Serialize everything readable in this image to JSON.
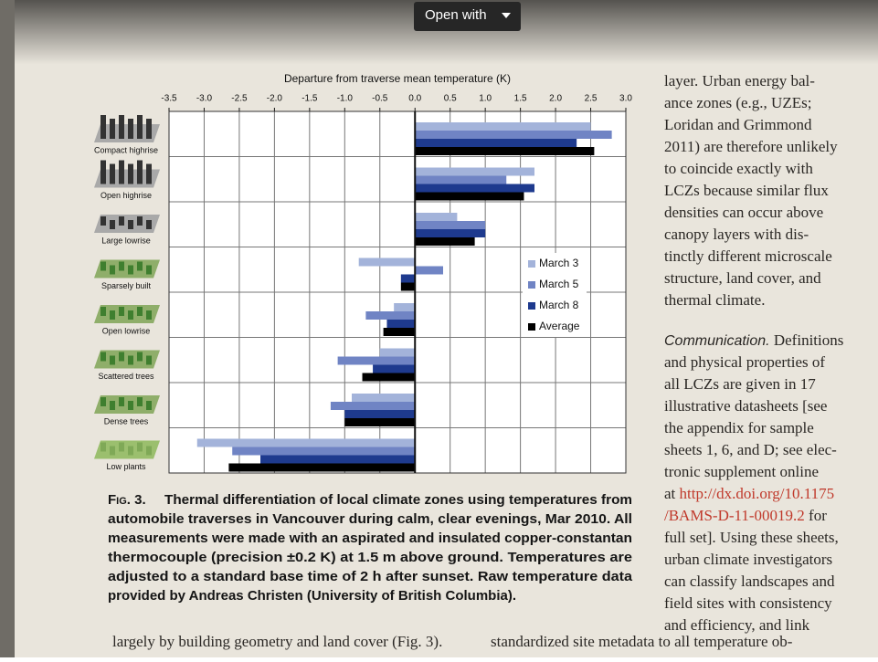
{
  "toolbar": {
    "open_with": "Open with"
  },
  "chart_data": {
    "type": "hbar",
    "title": "Departure from traverse mean temperature (K)",
    "categories": [
      "Compact highrise",
      "Open highrise",
      "Large lowrise",
      "Sparsely built",
      "Open lowrise",
      "Scattered trees",
      "Dense trees",
      "Low plants"
    ],
    "series": [
      {
        "name": "March 3",
        "color": "#a3b3da",
        "values": [
          2.5,
          1.7,
          0.6,
          -0.8,
          -0.3,
          -0.5,
          -0.9,
          -3.1
        ]
      },
      {
        "name": "March 5",
        "color": "#7084c4",
        "values": [
          2.8,
          1.3,
          1.0,
          0.4,
          -0.7,
          -1.1,
          -1.2,
          -2.6
        ]
      },
      {
        "name": "March 8",
        "color": "#1e3a8e",
        "values": [
          2.3,
          1.7,
          1.0,
          -0.2,
          -0.4,
          -0.6,
          -1.0,
          -2.2
        ]
      },
      {
        "name": "Average",
        "color": "#000000",
        "values": [
          2.55,
          1.55,
          0.85,
          -0.2,
          -0.45,
          -0.75,
          -1.0,
          -2.65
        ]
      }
    ],
    "xlim": [
      -3.5,
      3.0
    ],
    "xticks": [
      -3.5,
      {
        "value": -3,
        "label": "-3.0"
      },
      -2.5,
      {
        "value": -2,
        "label": "-2.0"
      },
      -1.5,
      {
        "value": -1,
        "label": "-1.0"
      },
      -0.5,
      {
        "value": 0,
        "label": "0.0"
      },
      0.5,
      {
        "value": 1,
        "label": "1.0"
      },
      1.5,
      {
        "value": 2,
        "label": "2.0"
      },
      2.5,
      {
        "value": 3,
        "label": "3.0"
      }
    ],
    "grid": true,
    "legend": "right"
  },
  "caption": {
    "label": "Fig. 3.",
    "lines": [
      "Thermal differentiation of local climate zones using temperatures from",
      "automobile traverses in Vancouver during calm, clear evenings, Mar 2010. All",
      "measurements were made with an aspirated and insulated copper-constantan",
      "thermocouple (precision ±0.2 K) at 1.5 m above ground. Temperatures are",
      "adjusted to a standard base time of 2 h after sunset. Raw temperature data",
      "provided by Andreas Christen (University of British Columbia)."
    ]
  },
  "right_column": {
    "para1": [
      "layer. Urban energy bal-",
      "ance zones (e.g., UZEs;",
      "Loridan and Grimmond",
      "2011) are therefore unlikely",
      "to coincide exactly with",
      "LCZs because similar flux",
      "densities can occur above",
      "canopy layers with dis-",
      "tinctly different microscale",
      "structure, land cover, and",
      "thermal climate."
    ],
    "heading": "Communication.",
    "heading_rest": " Definitions",
    "para2a": [
      "and physical properties of",
      "all LCZs are given in 17",
      "illustrative datasheets [see",
      "the appendix for sample",
      "sheets 1, 6, and D; see elec-",
      "tronic supplement online"
    ],
    "link_line_1": {
      "before": "at ",
      "link": "http://dx.doi.org/10.1175"
    },
    "link_line_2": {
      "link": "/BAMS-D-11-00019.2",
      "after": " for"
    },
    "para2b": [
      "full set]. Using these sheets,",
      "urban climate investigators",
      "can classify landscapes and",
      "field sites with consistency",
      "and efficiency, and link"
    ]
  },
  "bottom": {
    "left": "largely by building geometry and land cover (Fig. 3).",
    "right": "standardized site metadata to all temperature ob-"
  }
}
